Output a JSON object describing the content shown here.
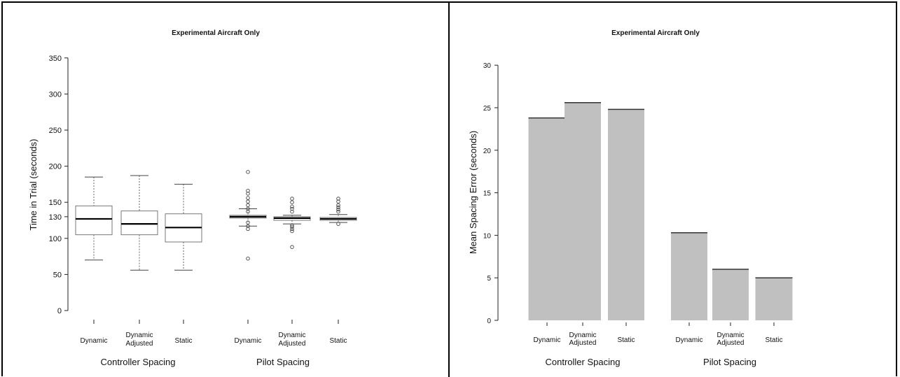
{
  "chart_data": [
    {
      "type": "box",
      "title": "Experimental Aircraft Only",
      "ylabel": "Time in Trial (seconds)",
      "ylim": [
        0,
        350
      ],
      "yticks": [
        0,
        50,
        100,
        130,
        150,
        200,
        250,
        300,
        350
      ],
      "yticks_text": [
        "0",
        "50",
        "100",
        "130",
        "150",
        "200",
        "250",
        "300",
        "350"
      ],
      "groups": [
        "Controller Spacing",
        "Pilot Spacing"
      ],
      "categories": [
        "Dynamic",
        "Dynamic Adjusted",
        "Static",
        "Dynamic",
        "Dynamic Adjusted",
        "Static"
      ],
      "category_labels": [
        [
          "Dynamic"
        ],
        [
          "Dynamic",
          "Adjusted"
        ],
        [
          "Static"
        ],
        [
          "Dynamic"
        ],
        [
          "Dynamic",
          "Adjusted"
        ],
        [
          "Static"
        ]
      ],
      "boxes": [
        {
          "category": "Dynamic",
          "group": "Controller Spacing",
          "whisker_low": 70,
          "q1": 105,
          "median": 127,
          "q3": 145,
          "whisker_high": 185,
          "outliers": []
        },
        {
          "category": "Dynamic Adjusted",
          "group": "Controller Spacing",
          "whisker_low": 56,
          "q1": 105,
          "median": 120,
          "q3": 138,
          "whisker_high": 187,
          "outliers": []
        },
        {
          "category": "Static",
          "group": "Controller Spacing",
          "whisker_low": 56,
          "q1": 95,
          "median": 115,
          "q3": 134,
          "whisker_high": 175,
          "outliers": []
        },
        {
          "category": "Dynamic",
          "group": "Pilot Spacing",
          "whisker_low": 117,
          "q1": 128,
          "median": 130,
          "q3": 132,
          "whisker_high": 141,
          "outliers": [
            72,
            113,
            117,
            122,
            137,
            141,
            146,
            151,
            156,
            162,
            166,
            192
          ]
        },
        {
          "category": "Dynamic Adjusted",
          "group": "Pilot Spacing",
          "whisker_low": 120,
          "q1": 125,
          "median": 128,
          "q3": 130,
          "whisker_high": 132,
          "outliers": [
            88,
            110,
            113,
            116,
            118,
            137,
            141,
            144,
            150,
            155
          ]
        },
        {
          "category": "Static",
          "group": "Pilot Spacing",
          "whisker_low": 122,
          "q1": 125,
          "median": 127,
          "q3": 129,
          "whisker_high": 133,
          "outliers": [
            120,
            137,
            140,
            143,
            146,
            151,
            155
          ]
        }
      ]
    },
    {
      "type": "bar",
      "title": "Experimental Aircraft Only",
      "ylabel": "Mean Spacing Error (seconds)",
      "ylim": [
        0,
        30
      ],
      "yticks": [
        0,
        5,
        10,
        15,
        20,
        25,
        30
      ],
      "yticks_text": [
        "0",
        "5",
        "10",
        "15",
        "20",
        "25",
        "30"
      ],
      "groups": [
        "Controller Spacing",
        "Pilot Spacing"
      ],
      "categories": [
        "Dynamic",
        "Dynamic Adjusted",
        "Static",
        "Dynamic",
        "Dynamic Adjusted",
        "Static"
      ],
      "category_labels": [
        [
          "Dynamic"
        ],
        [
          "Dynamic",
          "Adjusted"
        ],
        [
          "Static"
        ],
        [
          "Dynamic"
        ],
        [
          "Dynamic",
          "Adjusted"
        ],
        [
          "Static"
        ]
      ],
      "values": [
        23.8,
        25.6,
        24.8,
        10.3,
        6.0,
        5.0
      ],
      "bar_color": "#c0c0c0"
    }
  ]
}
